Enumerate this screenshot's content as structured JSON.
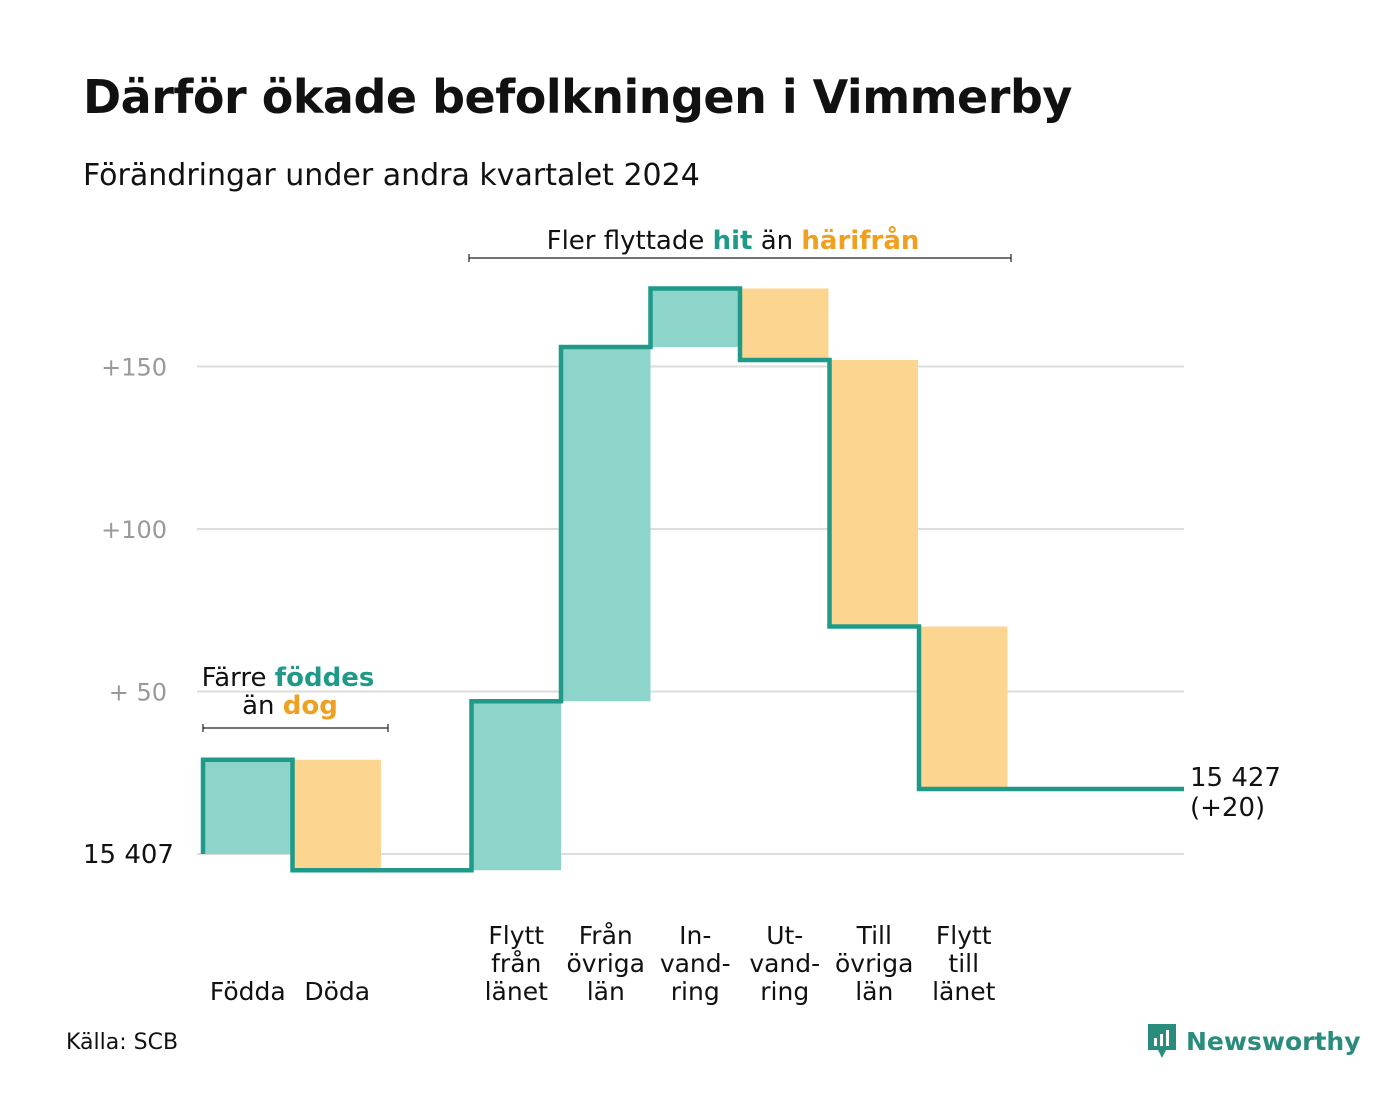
{
  "title": "Därför ökade befolkningen i Vimmerby",
  "subtitle": "Förändringar under andra kvartalet 2024",
  "source": "Källa: SCB",
  "logo_text": "Newsworthy",
  "colors": {
    "line": "#1f9a88",
    "increase": "#8dd5cb",
    "decrease": "#fcd690",
    "teal_text": "#1f9a88",
    "orange_text": "#f0a020",
    "grid": "#dddddd",
    "tick": "#999999"
  },
  "annotations": {
    "left": {
      "line1": "Färre",
      "hl1": "föddes",
      "line2": "än",
      "hl2": "dog"
    },
    "right": {
      "t1": "Fler flyttade",
      "hl1": "hit",
      "t2": "än",
      "hl2": "härifrån"
    }
  },
  "chart_data": {
    "type": "waterfall",
    "title": "Därför ökade befolkningen i Vimmerby",
    "subtitle": "Förändringar under andra kvartalet 2024",
    "base": 15407,
    "base_label": "15  407",
    "end_value": 15427,
    "end_label": [
      "15 427",
      "(+20)"
    ],
    "yticks": [
      {
        "value": 50,
        "label": "+  50"
      },
      {
        "value": 100,
        "label": "+100"
      },
      {
        "value": 150,
        "label": "+150"
      }
    ],
    "ylim": [
      -10,
      175
    ],
    "steps": [
      {
        "category": [
          "Födda"
        ],
        "delta": 29,
        "kind": "increase"
      },
      {
        "category": [
          "Döda"
        ],
        "delta": -34,
        "kind": "decrease"
      },
      {
        "category": [],
        "delta": 0,
        "kind": "gap"
      },
      {
        "category": [
          "Flytt",
          "från",
          "länet"
        ],
        "delta": 52,
        "kind": "increase"
      },
      {
        "category": [
          "Från",
          "övriga",
          "län"
        ],
        "delta": 109,
        "kind": "increase"
      },
      {
        "category": [
          "In-",
          "vand-",
          "ring"
        ],
        "delta": 18,
        "kind": "increase"
      },
      {
        "category": [
          "Ut-",
          "vand-",
          "ring"
        ],
        "delta": -22,
        "kind": "decrease"
      },
      {
        "category": [
          "Till",
          "övriga",
          "län"
        ],
        "delta": -82,
        "kind": "decrease"
      },
      {
        "category": [
          "Flytt",
          "till",
          "länet"
        ],
        "delta": -50,
        "kind": "decrease"
      }
    ]
  }
}
